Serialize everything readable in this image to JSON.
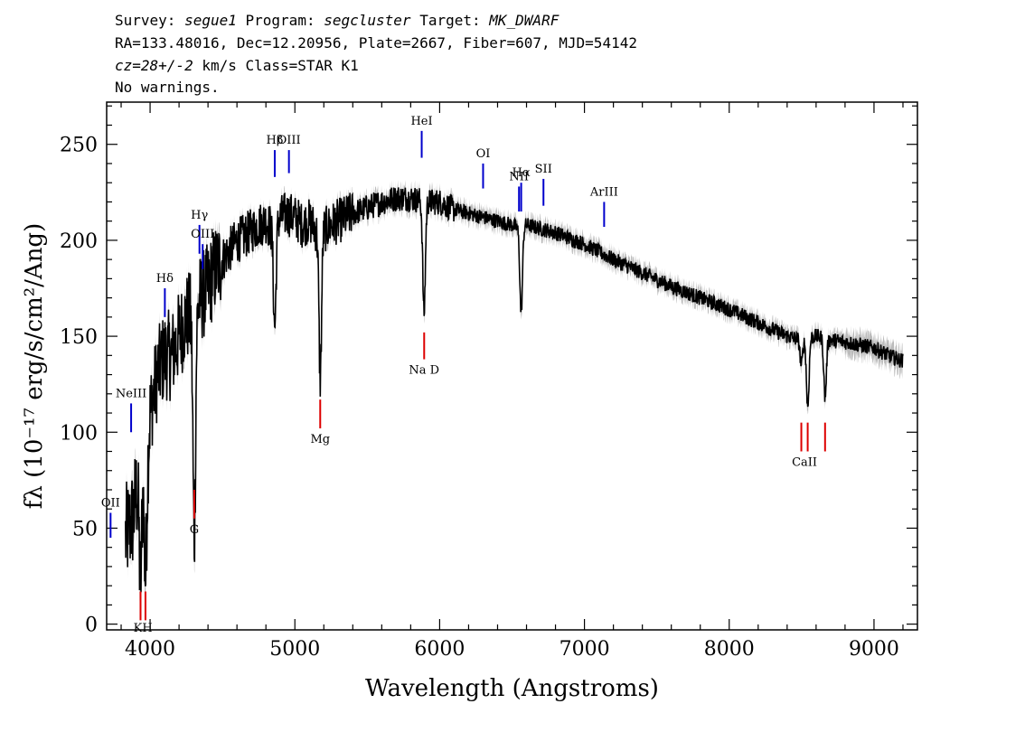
{
  "header": {
    "line1": {
      "survey_label": "Survey:",
      "survey": "segue1",
      "program_label": "Program:",
      "program": "segcluster",
      "target_label": "Target:",
      "target": "MK_DWARF"
    },
    "line2": "RA=133.48016, Dec=12.20956, Plate=2667, Fiber=607, MJD=54142",
    "line3": {
      "cz_label": "cz=28+/-2",
      "cz_units": " km/s Class=STAR K1"
    },
    "line4": "No warnings."
  },
  "chart_data": {
    "type": "line",
    "xlabel": "Wavelength (Angstroms)",
    "ylabel": "fλ (10⁻¹⁷ erg/s/cm²/Ang)",
    "xlim": [
      3700,
      9300
    ],
    "ylim": [
      -3,
      272
    ],
    "x_ticks": [
      4000,
      5000,
      6000,
      7000,
      8000,
      9000
    ],
    "y_ticks": [
      0,
      50,
      100,
      150,
      200,
      250
    ],
    "grid": false,
    "colors": {
      "spectrum": "#000000",
      "error_band": "#bbbbbb",
      "emission": "#0000cc",
      "absorption": "#dd0000"
    },
    "spectrum_envelope": {
      "x": [
        3830,
        3880,
        3920,
        3950,
        3970,
        4000,
        4050,
        4100,
        4150,
        4200,
        4250,
        4300,
        4350,
        4400,
        4450,
        4500,
        4550,
        4600,
        4650,
        4700,
        4750,
        4800,
        4850,
        4900,
        4950,
        5000,
        5050,
        5100,
        5150,
        5200,
        5250,
        5300,
        5400,
        5500,
        5600,
        5700,
        5800,
        5900,
        6000,
        6100,
        6200,
        6300,
        6400,
        6500,
        6550,
        6600,
        6700,
        6800,
        7000,
        7200,
        7400,
        7600,
        7800,
        8000,
        8200,
        8400,
        8500,
        8600,
        8700,
        8800,
        9000,
        9100,
        9200
      ],
      "y": [
        45,
        55,
        75,
        85,
        75,
        110,
        130,
        140,
        140,
        150,
        160,
        160,
        170,
        175,
        185,
        190,
        195,
        200,
        202,
        205,
        208,
        210,
        205,
        212,
        214,
        212,
        208,
        210,
        205,
        205,
        208,
        210,
        214,
        217,
        220,
        222,
        222,
        220,
        220,
        216,
        214,
        212,
        210,
        208,
        206,
        208,
        206,
        204,
        198,
        190,
        183,
        176,
        170,
        164,
        157,
        150,
        148,
        150,
        148,
        147,
        144,
        140,
        137
      ]
    },
    "absorption_dips": [
      {
        "x": 3934,
        "y": 22
      },
      {
        "x": 3968,
        "y": 25
      },
      {
        "x": 4305,
        "y": 45
      },
      {
        "x": 4861,
        "y": 155
      },
      {
        "x": 5175,
        "y": 128
      },
      {
        "x": 5892,
        "y": 162
      },
      {
        "x": 6563,
        "y": 162
      },
      {
        "x": 8498,
        "y": 135
      },
      {
        "x": 8542,
        "y": 113
      },
      {
        "x": 8662,
        "y": 118
      }
    ],
    "emission_lines": [
      {
        "label": "OII",
        "x": 3727,
        "y0": 45,
        "y1": 58
      },
      {
        "label": "NeIII",
        "x": 3869,
        "y0": 100,
        "y1": 115
      },
      {
        "label": "Hδ",
        "x": 4102,
        "y0": 160,
        "y1": 175
      },
      {
        "label": "Hγ",
        "x": 4341,
        "y0": 193,
        "y1": 208
      },
      {
        "label": "OIII",
        "x": 4363,
        "y0": 185,
        "y1": 198
      },
      {
        "label": "Hβ",
        "x": 4861,
        "y0": 233,
        "y1": 247
      },
      {
        "label": "OIII",
        "x": 4959,
        "y0": 235,
        "y1": 247
      },
      {
        "label": "HeI",
        "x": 5876,
        "y0": 243,
        "y1": 257
      },
      {
        "label": "OI",
        "x": 6300,
        "y0": 227,
        "y1": 240
      },
      {
        "label": "NII",
        "x": 6548,
        "y0": 215,
        "y1": 228
      },
      {
        "label": "Hα",
        "x": 6563,
        "y0": 215,
        "y1": 230
      },
      {
        "label": "SII",
        "x": 6717,
        "y0": 218,
        "y1": 232
      },
      {
        "label": "ArIII",
        "x": 7136,
        "y0": 207,
        "y1": 220
      }
    ],
    "absorption_lines": [
      {
        "label": "K",
        "x": 3934,
        "y0": 2,
        "y1": 17
      },
      {
        "label": "H",
        "x": 3968,
        "y0": 2,
        "y1": 17
      },
      {
        "label": "G",
        "x": 4305,
        "y0": 55,
        "y1": 70
      },
      {
        "label": "Mg",
        "x": 5175,
        "y0": 102,
        "y1": 117
      },
      {
        "label": "Na D",
        "x": 5893,
        "y0": 138,
        "y1": 152
      },
      {
        "label": "CaII",
        "x": 8498,
        "y0": 90,
        "y1": 105
      },
      {
        "label": "CaII",
        "x": 8542,
        "y0": 90,
        "y1": 105
      },
      {
        "label": "CaII",
        "x": 8662,
        "y0": 90,
        "y1": 105
      }
    ],
    "line_label_text": {
      "OII": "OII",
      "NeIII": "NeIII",
      "Hdelta": "Hδ",
      "Hgamma": "Hγ",
      "OIII": "OIII",
      "Hbeta": "Hβ",
      "HeI": "HeI",
      "OI": "OI",
      "NII": "NII",
      "Halpha": "Hα",
      "SII": "SII",
      "ArIII": "ArIII",
      "KH": "KH",
      "G": "G",
      "Mg": "Mg",
      "NaD": "Na D",
      "CaII": "CaII"
    }
  }
}
